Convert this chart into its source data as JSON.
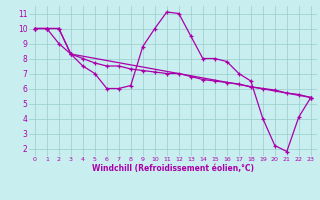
{
  "background_color": "#c8eef0",
  "line_color": "#aa00aa",
  "grid_color": "#99cccc",
  "xlabel": "Windchill (Refroidissement éolien,°C)",
  "xlim": [
    -0.5,
    23.5
  ],
  "ylim": [
    1.5,
    11.5
  ],
  "xticks": [
    0,
    1,
    2,
    3,
    4,
    5,
    6,
    7,
    8,
    9,
    10,
    11,
    12,
    13,
    14,
    15,
    16,
    17,
    18,
    19,
    20,
    21,
    22,
    23
  ],
  "yticks": [
    2,
    3,
    4,
    5,
    6,
    7,
    8,
    9,
    10,
    11
  ],
  "line1_x": [
    0,
    1,
    2,
    3,
    4,
    5,
    6,
    7,
    8,
    9,
    10,
    11,
    12,
    13,
    14,
    15,
    16,
    17,
    18,
    19,
    20,
    21,
    22,
    23
  ],
  "line1_y": [
    10,
    10,
    9,
    8.3,
    7.5,
    7,
    6,
    6,
    6.2,
    8.8,
    10,
    11.1,
    11,
    9.5,
    8,
    8,
    7.8,
    7,
    6.5,
    4,
    2.2,
    1.8,
    4.1,
    5.4
  ],
  "line2_x": [
    0,
    1,
    2,
    3,
    4,
    5,
    6,
    7,
    8,
    9,
    10,
    11,
    12,
    13,
    14,
    15,
    16,
    17,
    18,
    19,
    20,
    21,
    22,
    23
  ],
  "line2_y": [
    10,
    10,
    10,
    8.3,
    8,
    7.7,
    7.5,
    7.5,
    7.3,
    7.2,
    7.1,
    7,
    7,
    6.8,
    6.6,
    6.5,
    6.4,
    6.3,
    6.1,
    6,
    5.9,
    5.7,
    5.6,
    5.4
  ],
  "line3_x": [
    0,
    1,
    2,
    3,
    23
  ],
  "line3_y": [
    10,
    10,
    10,
    8.3,
    5.4
  ]
}
